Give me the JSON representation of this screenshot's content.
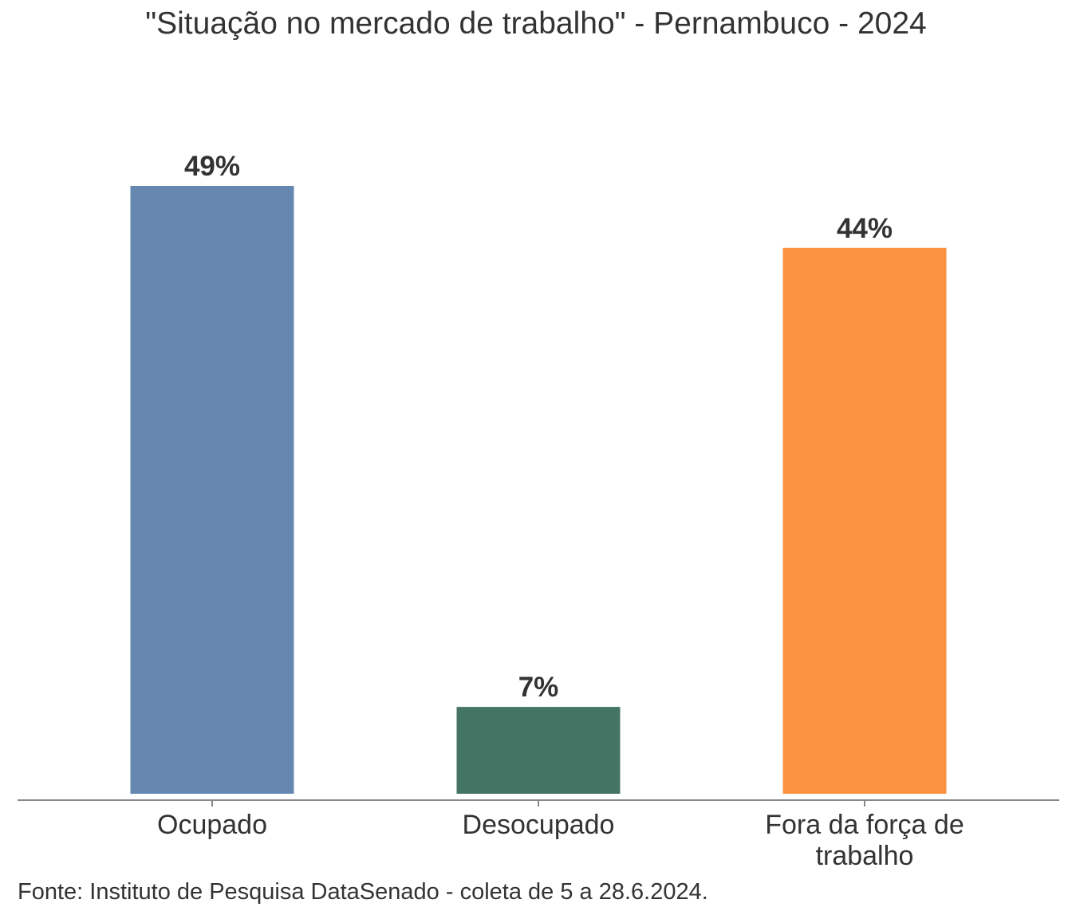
{
  "chart_data": {
    "type": "bar",
    "title": "\"Situação no mercado de trabalho\" - Pernambuco - 2024",
    "categories": [
      "Ocupado",
      "Desocupado",
      "Fora da força de trabalho"
    ],
    "category_lines": [
      [
        "Ocupado"
      ],
      [
        "Desocupado"
      ],
      [
        "Fora da força de",
        "trabalho"
      ]
    ],
    "values": [
      49,
      7,
      44
    ],
    "data_labels": [
      "49%",
      "7%",
      "44%"
    ],
    "colors": [
      "#6688B0",
      "#447564",
      "#FA923F"
    ],
    "xlabel": "",
    "ylabel": "",
    "ylim": [
      0,
      49
    ],
    "grid": false,
    "legend": "none"
  },
  "footer": "Fonte: Instituto de Pesquisa DataSenado - coleta de 5 a 28.6.2024."
}
